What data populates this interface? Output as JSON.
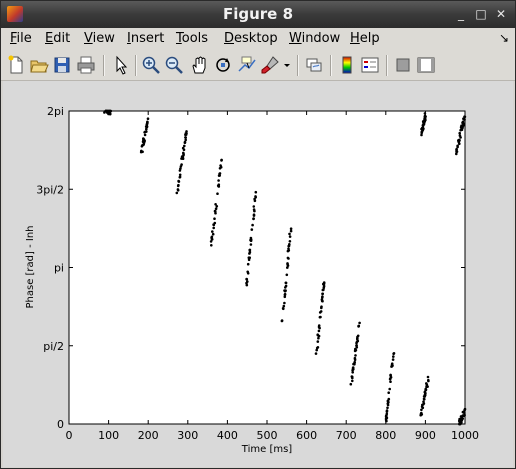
{
  "window": {
    "title": "Figure 8",
    "controls": {
      "minimize": "_",
      "maximize": "□",
      "close": "✕"
    }
  },
  "menu": {
    "items": [
      {
        "key": "file",
        "mnemonic": "F",
        "rest": "ile"
      },
      {
        "key": "edit",
        "mnemonic": "E",
        "rest": "dit"
      },
      {
        "key": "view",
        "mnemonic": "V",
        "rest": "iew"
      },
      {
        "key": "insert",
        "mnemonic": "I",
        "rest": "nsert"
      },
      {
        "key": "tools",
        "mnemonic": "T",
        "rest": "ools"
      },
      {
        "key": "desktop",
        "mnemonic": "D",
        "rest": "esktop"
      },
      {
        "key": "window",
        "mnemonic": "W",
        "rest": "indow"
      },
      {
        "key": "help",
        "mnemonic": "H",
        "rest": "elp"
      }
    ],
    "dock_arrow": "↘"
  },
  "toolbar": {
    "icons": [
      "new-figure-icon",
      "open-file-icon",
      "save-icon",
      "print-icon",
      "edit-plot-arrow-icon",
      "zoom-in-icon",
      "zoom-out-icon",
      "pan-hand-icon",
      "rotate-3d-icon",
      "data-cursor-icon",
      "brush-icon",
      "dropdown-arrow-icon",
      "link-plot-icon",
      "colorbar-icon",
      "legend-icon",
      "hide-plot-tools-icon",
      "show-plot-tools-icon"
    ]
  },
  "chart_data": {
    "type": "scatter",
    "xlabel": "Time [ms]",
    "ylabel": "Phase [rad] - Inh",
    "xlim": [
      0,
      1000
    ],
    "ylim": [
      0,
      6.2832
    ],
    "x_ticks": [
      0,
      100,
      200,
      300,
      400,
      500,
      600,
      700,
      800,
      900,
      1000
    ],
    "x_tick_labels": [
      "0",
      "100",
      "200",
      "300",
      "400",
      "500",
      "600",
      "700",
      "800",
      "900",
      "1000"
    ],
    "y_ticks": [
      0,
      1.5708,
      3.1416,
      4.7124,
      6.2832
    ],
    "y_tick_labels": [
      "0",
      "pi/2",
      "pi",
      "3pi/2",
      "2pi"
    ],
    "grid": false,
    "marker": "black dots",
    "clusters": [
      {
        "x_start": 90,
        "x_end": 105,
        "y_start": 6.28,
        "y_end": 6.28
      },
      {
        "x_start": 183,
        "x_end": 202,
        "y_start": 5.45,
        "y_end": 6.2
      },
      {
        "x_start": 272,
        "x_end": 296,
        "y_start": 4.55,
        "y_end": 5.85
      },
      {
        "x_start": 360,
        "x_end": 385,
        "y_start": 3.6,
        "y_end": 5.3
      },
      {
        "x_start": 448,
        "x_end": 472,
        "y_start": 2.8,
        "y_end": 4.65
      },
      {
        "x_start": 538,
        "x_end": 560,
        "y_start": 2.05,
        "y_end": 3.9
      },
      {
        "x_start": 625,
        "x_end": 645,
        "y_start": 1.4,
        "y_end": 2.9
      },
      {
        "x_start": 713,
        "x_end": 735,
        "y_start": 0.85,
        "y_end": 2.1
      },
      {
        "x_start": 800,
        "x_end": 820,
        "y_start": 0.05,
        "y_end": 1.45
      },
      {
        "x_start": 888,
        "x_end": 908,
        "y_start": 0.15,
        "y_end": 0.95
      },
      {
        "x_start": 890,
        "x_end": 900,
        "y_start": 5.85,
        "y_end": 6.2
      },
      {
        "x_start": 978,
        "x_end": 1000,
        "y_start": 5.45,
        "y_end": 6.2
      },
      {
        "x_start": 985,
        "x_end": 1000,
        "y_start": 0.0,
        "y_end": 0.25
      }
    ]
  }
}
